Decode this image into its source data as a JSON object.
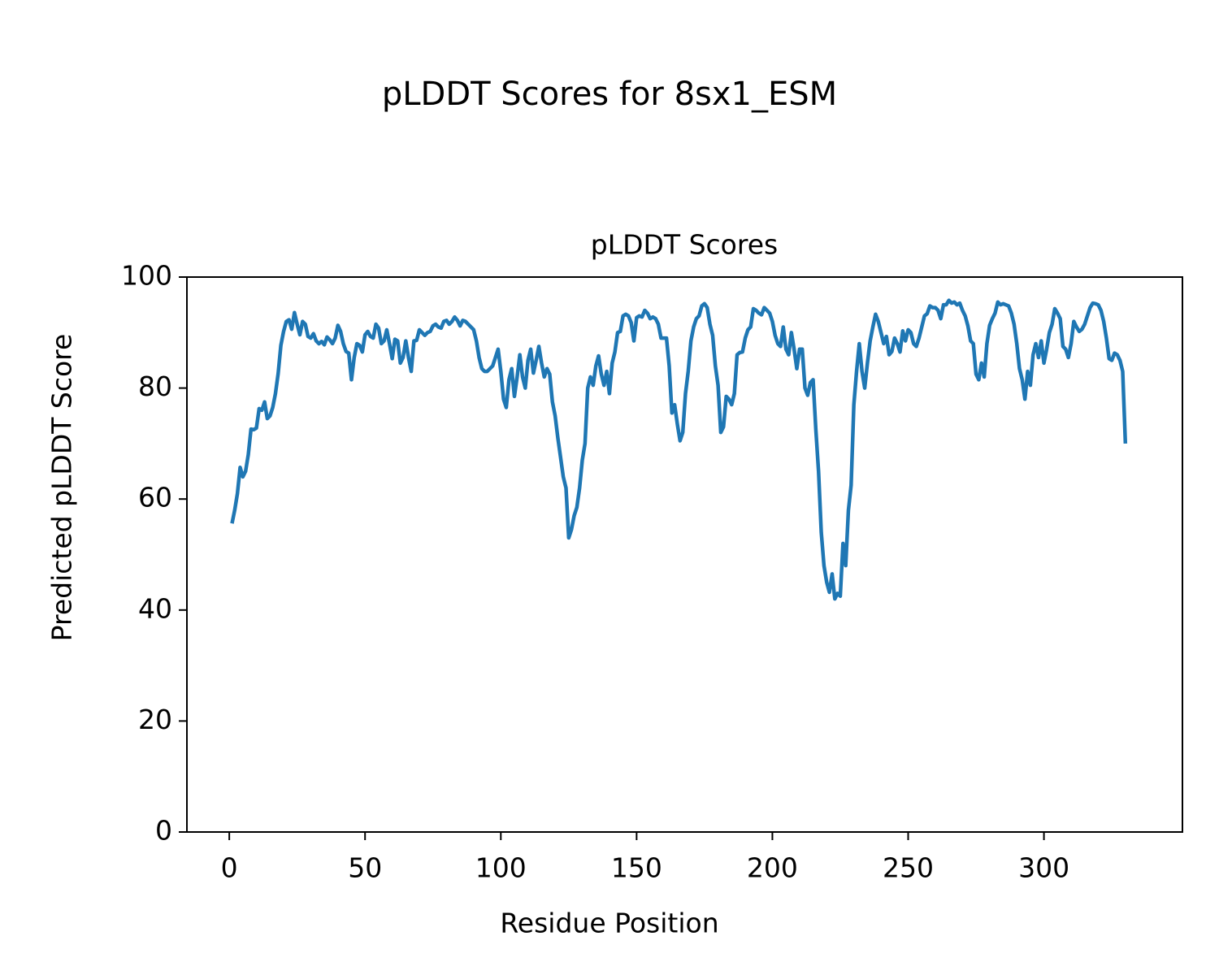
{
  "chart_data": {
    "type": "line",
    "title": "pLDDT Scores for 8sx1_ESM",
    "subtitle": "pLDDT Scores",
    "x_label": "Residue Position",
    "y_label": "Predicted pLDDT Score",
    "color": "#1f77b4",
    "xlim": [
      -15.6,
      351
    ],
    "ylim": [
      0,
      100
    ],
    "xticks": [
      0,
      50,
      100,
      150,
      200,
      250,
      300
    ],
    "yticks": [
      0,
      20,
      40,
      60,
      80,
      100
    ],
    "x": [
      1,
      2,
      3,
      4,
      5,
      6,
      7,
      8,
      9,
      10,
      11,
      12,
      13,
      14,
      15,
      16,
      17,
      18,
      19,
      20,
      21,
      22,
      23,
      24,
      25,
      26,
      27,
      28,
      29,
      30,
      31,
      32,
      33,
      34,
      35,
      36,
      37,
      38,
      39,
      40,
      41,
      42,
      43,
      44,
      45,
      46,
      47,
      48,
      49,
      50,
      51,
      52,
      53,
      54,
      55,
      56,
      57,
      58,
      59,
      60,
      61,
      62,
      63,
      64,
      65,
      66,
      67,
      68,
      69,
      70,
      71,
      72,
      73,
      74,
      75,
      76,
      77,
      78,
      79,
      80,
      81,
      82,
      83,
      84,
      85,
      86,
      87,
      88,
      89,
      90,
      91,
      92,
      93,
      94,
      95,
      96,
      97,
      98,
      99,
      100,
      101,
      102,
      103,
      104,
      105,
      106,
      107,
      108,
      109,
      110,
      111,
      112,
      113,
      114,
      115,
      116,
      117,
      118,
      119,
      120,
      121,
      122,
      123,
      124,
      125,
      126,
      127,
      128,
      129,
      130,
      131,
      132,
      133,
      134,
      135,
      136,
      137,
      138,
      139,
      140,
      141,
      142,
      143,
      144,
      145,
      146,
      147,
      148,
      149,
      150,
      151,
      152,
      153,
      154,
      155,
      156,
      157,
      158,
      159,
      160,
      161,
      162,
      163,
      164,
      165,
      166,
      167,
      168,
      169,
      170,
      171,
      172,
      173,
      174,
      175,
      176,
      177,
      178,
      179,
      180,
      181,
      182,
      183,
      184,
      185,
      186,
      187,
      188,
      189,
      190,
      191,
      192,
      193,
      194,
      195,
      196,
      197,
      198,
      199,
      200,
      201,
      202,
      203,
      204,
      205,
      206,
      207,
      208,
      209,
      210,
      211,
      212,
      213,
      214,
      215,
      216,
      217,
      218,
      219,
      220,
      221,
      222,
      223,
      224,
      225,
      226,
      227,
      228,
      229,
      230,
      231,
      232,
      233,
      234,
      235,
      236,
      237,
      238,
      239,
      240,
      241,
      242,
      243,
      244,
      245,
      246,
      247,
      248,
      249,
      250,
      251,
      252,
      253,
      254,
      255,
      256,
      257,
      258,
      259,
      260,
      261,
      262,
      263,
      264,
      265,
      266,
      267,
      268,
      269,
      270,
      271,
      272,
      273,
      274,
      275,
      276,
      277,
      278,
      279,
      280,
      281,
      282,
      283,
      284,
      285,
      286,
      287,
      288,
      289,
      290,
      291,
      292,
      293,
      294,
      295,
      296,
      297,
      298,
      299,
      300,
      301,
      302,
      303,
      304,
      305,
      306,
      307,
      308,
      309,
      310,
      311,
      312,
      313,
      314,
      315,
      316,
      317,
      318,
      319,
      320,
      321,
      322,
      323,
      324,
      325,
      326,
      327,
      328,
      329,
      330
    ],
    "values": [
      55.6,
      58,
      61,
      65.7,
      64,
      65,
      68,
      72.6,
      72.5,
      72.8,
      76.3,
      76,
      77.5,
      74.5,
      75,
      76.5,
      79,
      82.6,
      87.7,
      90.2,
      92,
      92.3,
      90.6,
      93.6,
      91.5,
      89.6,
      92,
      91.5,
      89.3,
      89,
      89.8,
      88.5,
      88,
      88.4,
      87.8,
      89.2,
      88.7,
      88,
      89,
      91.3,
      90.2,
      88,
      86.6,
      86.3,
      81.5,
      85.5,
      88,
      87.7,
      86.5,
      89.6,
      90.2,
      89.3,
      89,
      91.5,
      90.8,
      88,
      88.5,
      90.5,
      88,
      85.3,
      88.8,
      88.5,
      84.5,
      85.5,
      88.5,
      85.5,
      83,
      88.5,
      88.6,
      90.5,
      90,
      89.5,
      90,
      90.2,
      91.2,
      91.5,
      91,
      90.8,
      92,
      92.2,
      91.5,
      92,
      92.8,
      92.2,
      91.2,
      92.2,
      92,
      91.5,
      91,
      90.5,
      88.5,
      85.5,
      83.5,
      83,
      83,
      83.5,
      84,
      85.5,
      87,
      83,
      78,
      76.5,
      81.5,
      83.5,
      78.5,
      82,
      86,
      82,
      80,
      85,
      87,
      82.7,
      85,
      87.5,
      84.5,
      82,
      83.5,
      82.5,
      77.5,
      75,
      71,
      67.5,
      64,
      62,
      53,
      54.5,
      57,
      58.5,
      62,
      67,
      70,
      80,
      82,
      80.5,
      84,
      85.8,
      82.5,
      80.5,
      83,
      79,
      84.5,
      86.5,
      90,
      90.2,
      93,
      93.3,
      93,
      91.8,
      88.5,
      92.7,
      93,
      92.8,
      94,
      93.5,
      92.5,
      92.8,
      92.5,
      91.5,
      89,
      89,
      89,
      84,
      75.5,
      77,
      73.5,
      70.5,
      72,
      79,
      83,
      88.5,
      91,
      92.5,
      93,
      94.8,
      95.2,
      94.5,
      91.5,
      89.5,
      84,
      80.5,
      72,
      73,
      78.5,
      78,
      77,
      79,
      86,
      86.4,
      86.5,
      89,
      90.5,
      91,
      94.3,
      94,
      93.5,
      93.2,
      94.5,
      94,
      93.5,
      92,
      89.5,
      88,
      87.5,
      91,
      87,
      86,
      90,
      87,
      83.5,
      87,
      87,
      80,
      78.7,
      81,
      81.5,
      72.5,
      65,
      54,
      48,
      45,
      43.2,
      46.5,
      42,
      43,
      42.5,
      52,
      48,
      58,
      62.5,
      77,
      83,
      88,
      83,
      80,
      84.5,
      88.5,
      91,
      93.3,
      92,
      90,
      88,
      89.3,
      86,
      86.6,
      89,
      88,
      86.5,
      90.3,
      88.5,
      90.5,
      90,
      88,
      87.5,
      89,
      91,
      93,
      93.4,
      94.8,
      94.5,
      94.5,
      94,
      92.5,
      95,
      95,
      95.8,
      95.3,
      95.5,
      95,
      95.3,
      94,
      93,
      91.2,
      88.5,
      88,
      82.5,
      81.5,
      84.5,
      82,
      88,
      91.3,
      92.5,
      93.5,
      95.5,
      95,
      95.2,
      95,
      94.8,
      93.5,
      91.5,
      88,
      83.5,
      81.5,
      78,
      83,
      80.5,
      86,
      88,
      85.5,
      88.5,
      84.5,
      87,
      90,
      91.5,
      94.3,
      93.5,
      92.5,
      87.5,
      87,
      85.5,
      88,
      92,
      91,
      90.2,
      90.6,
      91.5,
      93,
      94.5,
      95.3,
      95.2,
      95,
      94,
      92,
      89,
      85.3,
      85,
      86.3,
      86,
      85,
      83,
      70
    ]
  }
}
